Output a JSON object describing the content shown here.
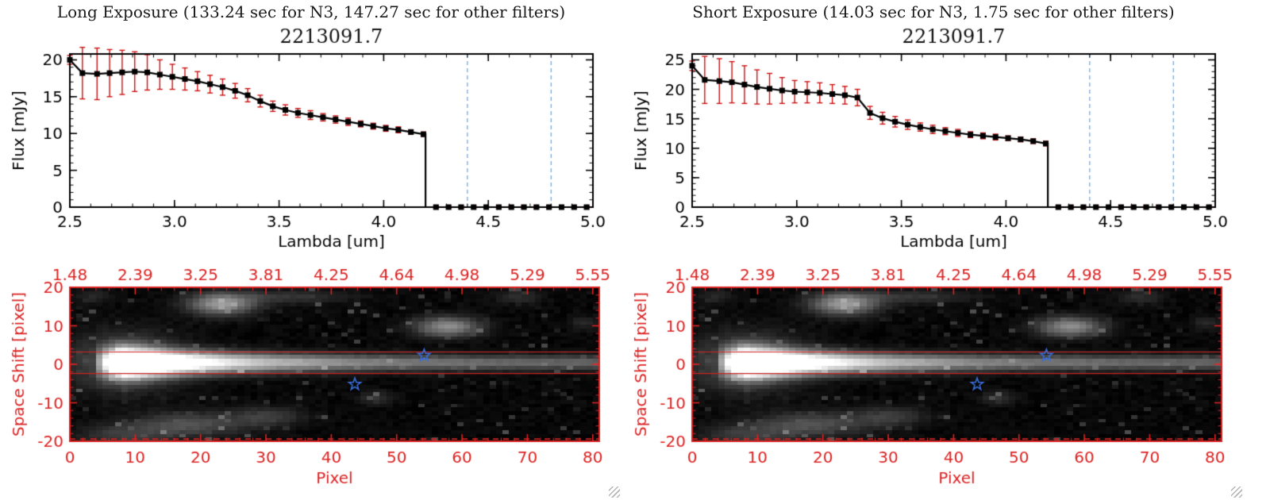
{
  "panels": [
    {
      "title": "Long Exposure (133.24 sec for N3, 147.27 sec for other filters)"
    },
    {
      "title": "Short Exposure (14.03 sec for N3, 1.75 sec for other filters)"
    }
  ],
  "colors": {
    "spectrum_line": "#000000",
    "error_bar": "#cc1111",
    "band_marker_line": "#6f9fd0",
    "image_axis": "#dd2222",
    "aperture_line": "#cc2222",
    "star": "#3a6fd8",
    "background": "#ffffff"
  },
  "chart_data": [
    {
      "type": "line",
      "panel_index": 0,
      "title": "2213091.7",
      "xlabel": "Lambda [um]",
      "ylabel": "Flux [mJy]",
      "xlim": [
        2.5,
        5.0
      ],
      "ylim": [
        0,
        20.8
      ],
      "xticks": [
        2.5,
        3.0,
        3.5,
        4.0,
        4.5,
        5.0
      ],
      "yticks": [
        0,
        5,
        10,
        15,
        20
      ],
      "x_minor_step": 0.1,
      "y_minor_step": 1,
      "dashed_vlines_x": [
        4.4,
        4.8
      ],
      "drop_to_zero_x": 4.2,
      "points_lambda_flux_err": [
        [
          2.5,
          20.0,
          0.6
        ],
        [
          2.56,
          18.2,
          3.5
        ],
        [
          2.63,
          18.1,
          3.5
        ],
        [
          2.69,
          18.2,
          3.2
        ],
        [
          2.75,
          18.3,
          3.0
        ],
        [
          2.81,
          18.4,
          2.7
        ],
        [
          2.87,
          18.3,
          2.4
        ],
        [
          2.93,
          18.0,
          2.0
        ],
        [
          2.99,
          17.7,
          1.7
        ],
        [
          3.05,
          17.4,
          1.5
        ],
        [
          3.11,
          17.1,
          1.3
        ],
        [
          3.17,
          16.7,
          1.2
        ],
        [
          3.23,
          16.3,
          1.1
        ],
        [
          3.29,
          15.8,
          1.0
        ],
        [
          3.35,
          15.2,
          0.9
        ],
        [
          3.41,
          14.4,
          0.8
        ],
        [
          3.47,
          13.7,
          0.7
        ],
        [
          3.53,
          13.2,
          0.7
        ],
        [
          3.59,
          12.8,
          0.6
        ],
        [
          3.65,
          12.5,
          0.6
        ],
        [
          3.71,
          12.2,
          0.5
        ],
        [
          3.77,
          11.9,
          0.5
        ],
        [
          3.83,
          11.6,
          0.5
        ],
        [
          3.89,
          11.3,
          0.4
        ],
        [
          3.95,
          11.0,
          0.4
        ],
        [
          4.01,
          10.7,
          0.4
        ],
        [
          4.07,
          10.5,
          0.4
        ],
        [
          4.13,
          10.2,
          0.3
        ],
        [
          4.19,
          9.9,
          0.3
        ]
      ],
      "zero_tail_lambda_flux_err": [
        [
          4.25,
          0,
          0.2
        ],
        [
          4.31,
          0,
          0.2
        ],
        [
          4.37,
          0,
          0.2
        ],
        [
          4.43,
          0,
          0.2
        ],
        [
          4.49,
          0,
          0.2
        ],
        [
          4.55,
          0,
          0.2
        ],
        [
          4.61,
          0,
          0.2
        ],
        [
          4.67,
          0,
          0.2
        ],
        [
          4.73,
          0,
          0.2
        ],
        [
          4.79,
          0,
          0.2
        ],
        [
          4.85,
          0,
          0.2
        ],
        [
          4.91,
          0,
          0.2
        ],
        [
          4.97,
          0,
          0.2
        ]
      ]
    },
    {
      "type": "heatmap",
      "panel_index": 0,
      "xlabel": "Pixel",
      "ylabel": "Space Shift [pixel]",
      "xlim": [
        0,
        81
      ],
      "ylim": [
        -20,
        20
      ],
      "xticks": [
        0,
        10,
        20,
        30,
        40,
        50,
        60,
        70,
        80
      ],
      "yticks": [
        20,
        10,
        0,
        -10,
        -20
      ],
      "x_minor_step": 2,
      "y_minor_step": 2,
      "top_axis_tick_labels": [
        "1.48",
        "2.39",
        "3.25",
        "3.81",
        "4.25",
        "4.64",
        "4.98",
        "5.29",
        "5.55"
      ],
      "aperture_lines_y": [
        3.2,
        -2.4
      ],
      "bottom_dashed_line_y": -19.4,
      "star_positions": [
        [
          54.2,
          2.3
        ],
        [
          43.6,
          -5.2
        ]
      ],
      "trace": {
        "x_start": 3,
        "peak_x": 8,
        "peak_amp": 1.9,
        "base_amp": 0.33,
        "decay": 16,
        "y_center": 0.4,
        "sigma_min": 1.25,
        "sigma_extra": 1.3,
        "sigma_decay": 22,
        "halo_amp": 0.3,
        "halo_sx": 6,
        "halo_sy": 5
      },
      "blobs_x_y_sx_sy_amp": [
        [
          23,
          16,
          3.5,
          2.0,
          0.55
        ],
        [
          33,
          18,
          7.0,
          1.3,
          0.15
        ],
        [
          58,
          10,
          3.5,
          1.8,
          0.5
        ],
        [
          18,
          -16,
          6.0,
          2.2,
          0.26
        ],
        [
          30,
          -14,
          4.0,
          1.8,
          0.18
        ],
        [
          8,
          -19,
          5.0,
          2.0,
          0.18
        ],
        [
          47,
          -9,
          1.8,
          1.3,
          0.14
        ],
        [
          69,
          18,
          2.5,
          1.3,
          0.12
        ],
        [
          79,
          11,
          1.5,
          1.2,
          0.12
        ],
        [
          3,
          18,
          2.0,
          1.5,
          0.1
        ]
      ],
      "noise_seed": 42,
      "noise_amp": 0.04
    },
    {
      "type": "line",
      "panel_index": 1,
      "title": "2213091.7",
      "xlabel": "Lambda [um]",
      "ylabel": "Flux [mJy]",
      "xlim": [
        2.5,
        5.0
      ],
      "ylim": [
        0,
        26
      ],
      "xticks": [
        2.5,
        3.0,
        3.5,
        4.0,
        4.5,
        5.0
      ],
      "yticks": [
        0,
        5,
        10,
        15,
        20,
        25
      ],
      "x_minor_step": 0.1,
      "y_minor_step": 1,
      "dashed_vlines_x": [
        4.4,
        4.8
      ],
      "drop_to_zero_x": 4.2,
      "points_lambda_flux_err": [
        [
          2.5,
          24.0,
          0.8
        ],
        [
          2.56,
          21.6,
          4.0
        ],
        [
          2.63,
          21.4,
          3.8
        ],
        [
          2.69,
          21.2,
          3.5
        ],
        [
          2.75,
          20.8,
          3.2
        ],
        [
          2.81,
          20.4,
          2.9
        ],
        [
          2.87,
          20.1,
          2.6
        ],
        [
          2.93,
          19.8,
          2.2
        ],
        [
          2.99,
          19.6,
          1.9
        ],
        [
          3.05,
          19.5,
          1.8
        ],
        [
          3.11,
          19.4,
          1.7
        ],
        [
          3.17,
          19.2,
          1.6
        ],
        [
          3.23,
          19.0,
          1.5
        ],
        [
          3.29,
          18.6,
          1.4
        ],
        [
          3.35,
          16.0,
          1.1
        ],
        [
          3.41,
          15.1,
          1.0
        ],
        [
          3.47,
          14.5,
          0.9
        ],
        [
          3.53,
          14.0,
          0.8
        ],
        [
          3.59,
          13.6,
          0.7
        ],
        [
          3.65,
          13.2,
          0.7
        ],
        [
          3.71,
          12.9,
          0.6
        ],
        [
          3.77,
          12.6,
          0.6
        ],
        [
          3.83,
          12.3,
          0.5
        ],
        [
          3.89,
          12.1,
          0.5
        ],
        [
          3.95,
          11.9,
          0.5
        ],
        [
          4.01,
          11.7,
          0.4
        ],
        [
          4.07,
          11.5,
          0.4
        ],
        [
          4.13,
          11.2,
          0.4
        ],
        [
          4.19,
          10.8,
          0.4
        ]
      ],
      "zero_tail_lambda_flux_err": [
        [
          4.25,
          0,
          0.25
        ],
        [
          4.31,
          0,
          0.25
        ],
        [
          4.37,
          0,
          0.25
        ],
        [
          4.43,
          0,
          0.25
        ],
        [
          4.49,
          0,
          0.25
        ],
        [
          4.55,
          0,
          0.25
        ],
        [
          4.61,
          0,
          0.25
        ],
        [
          4.67,
          0,
          0.25
        ],
        [
          4.73,
          0,
          0.25
        ],
        [
          4.79,
          0,
          0.25
        ],
        [
          4.85,
          0,
          0.25
        ],
        [
          4.91,
          0,
          0.25
        ],
        [
          4.97,
          0,
          0.25
        ]
      ]
    },
    {
      "type": "heatmap",
      "panel_index": 1,
      "xlabel": "Pixel",
      "ylabel": "Space Shift [pixel]",
      "xlim": [
        0,
        81
      ],
      "ylim": [
        -20,
        20
      ],
      "xticks": [
        0,
        10,
        20,
        30,
        40,
        50,
        60,
        70,
        80
      ],
      "yticks": [
        20,
        10,
        0,
        -10,
        -20
      ],
      "x_minor_step": 2,
      "y_minor_step": 2,
      "top_axis_tick_labels": [
        "1.48",
        "2.39",
        "3.25",
        "3.81",
        "4.25",
        "4.64",
        "4.98",
        "5.29",
        "5.55"
      ],
      "aperture_lines_y": [
        3.2,
        -2.4
      ],
      "bottom_dashed_line_y": -19.4,
      "star_positions": [
        [
          54.2,
          2.3
        ],
        [
          43.6,
          -5.2
        ]
      ],
      "trace": {
        "x_start": 3,
        "peak_x": 8,
        "peak_amp": 1.9,
        "base_amp": 0.33,
        "decay": 16,
        "y_center": 0.4,
        "sigma_min": 1.25,
        "sigma_extra": 1.3,
        "sigma_decay": 22,
        "halo_amp": 0.3,
        "halo_sx": 6,
        "halo_sy": 5
      },
      "blobs_x_y_sx_sy_amp": [
        [
          23,
          16,
          3.5,
          2.0,
          0.55
        ],
        [
          33,
          18,
          7.0,
          1.3,
          0.15
        ],
        [
          58,
          10,
          3.5,
          1.8,
          0.5
        ],
        [
          18,
          -16,
          6.0,
          2.2,
          0.26
        ],
        [
          30,
          -14,
          4.0,
          1.8,
          0.18
        ],
        [
          8,
          -19,
          5.0,
          2.0,
          0.18
        ],
        [
          47,
          -9,
          1.8,
          1.3,
          0.14
        ],
        [
          69,
          18,
          2.5,
          1.3,
          0.12
        ],
        [
          79,
          11,
          1.5,
          1.2,
          0.12
        ],
        [
          3,
          18,
          2.0,
          1.5,
          0.1
        ]
      ],
      "noise_seed": 42,
      "noise_amp": 0.04
    }
  ]
}
